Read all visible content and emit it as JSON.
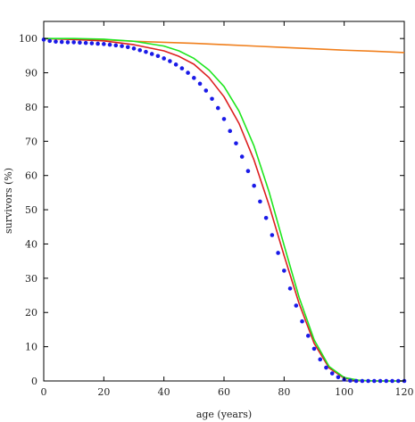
{
  "chart_data": {
    "type": "line",
    "xlabel": "age (years)",
    "ylabel": "survivors (%)",
    "xlim": [
      0,
      120
    ],
    "ylim": [
      0,
      105
    ],
    "xticks": [
      0,
      20,
      40,
      60,
      80,
      100,
      120
    ],
    "yticks": [
      0,
      10,
      20,
      30,
      40,
      50,
      60,
      70,
      80,
      90,
      100
    ],
    "grid": false,
    "series": [
      {
        "style": "line",
        "color": "#f07f1c",
        "x": [
          0,
          10,
          20,
          30,
          40,
          50,
          60,
          70,
          80,
          90,
          100,
          110,
          120
        ],
        "y": [
          100,
          99.9,
          99.6,
          99.2,
          98.9,
          98.6,
          98.2,
          97.8,
          97.4,
          97.0,
          96.6,
          96.3,
          95.9
        ]
      },
      {
        "style": "line",
        "color": "#dd1f1f",
        "x": [
          0,
          10,
          20,
          30,
          40,
          45,
          50,
          55,
          60,
          65,
          70,
          75,
          80,
          85,
          90,
          95,
          100,
          105,
          110,
          120
        ],
        "y": [
          100,
          99.7,
          99.3,
          98.2,
          96.4,
          94.8,
          92.5,
          88.6,
          83.0,
          75.2,
          64.5,
          51.3,
          36.6,
          22.6,
          11.0,
          3.8,
          0.8,
          0.1,
          0,
          0
        ]
      },
      {
        "style": "line",
        "color": "#1ee61e",
        "x": [
          0,
          10,
          20,
          30,
          40,
          45,
          50,
          55,
          60,
          65,
          70,
          75,
          80,
          85,
          90,
          95,
          100,
          105,
          110,
          120
        ],
        "y": [
          100,
          100,
          99.8,
          99.2,
          97.8,
          96.4,
          94.2,
          90.8,
          86.0,
          78.8,
          68.6,
          55.2,
          39.6,
          24.4,
          12.0,
          4.2,
          1.0,
          0.2,
          0,
          0
        ]
      },
      {
        "style": "points",
        "color": "#1a1ae8",
        "x": [
          0,
          2,
          4,
          6,
          8,
          10,
          12,
          14,
          16,
          18,
          20,
          22,
          24,
          26,
          28,
          30,
          32,
          34,
          36,
          38,
          40,
          42,
          44,
          46,
          48,
          50,
          52,
          54,
          56,
          58,
          60,
          62,
          64,
          66,
          68,
          70,
          72,
          74,
          76,
          78,
          80,
          82,
          84,
          86,
          88,
          90,
          92,
          94,
          96,
          98,
          100,
          102,
          104,
          106,
          108,
          110,
          112,
          114,
          116,
          118,
          120
        ],
        "y": [
          99.7,
          99.3,
          99.1,
          99.0,
          98.9,
          98.9,
          98.8,
          98.7,
          98.6,
          98.5,
          98.4,
          98.2,
          98.0,
          97.8,
          97.5,
          97.1,
          96.6,
          96.1,
          95.5,
          94.9,
          94.2,
          93.4,
          92.4,
          91.3,
          90.0,
          88.5,
          86.8,
          84.8,
          82.4,
          79.7,
          76.5,
          73.0,
          69.4,
          65.5,
          61.3,
          57.0,
          52.4,
          47.6,
          42.6,
          37.4,
          32.2,
          27.0,
          22.0,
          17.4,
          13.2,
          9.4,
          6.3,
          3.9,
          2.2,
          1.1,
          0.4,
          0.1,
          0,
          0,
          0,
          0,
          0,
          0,
          0,
          0,
          0
        ]
      }
    ]
  }
}
